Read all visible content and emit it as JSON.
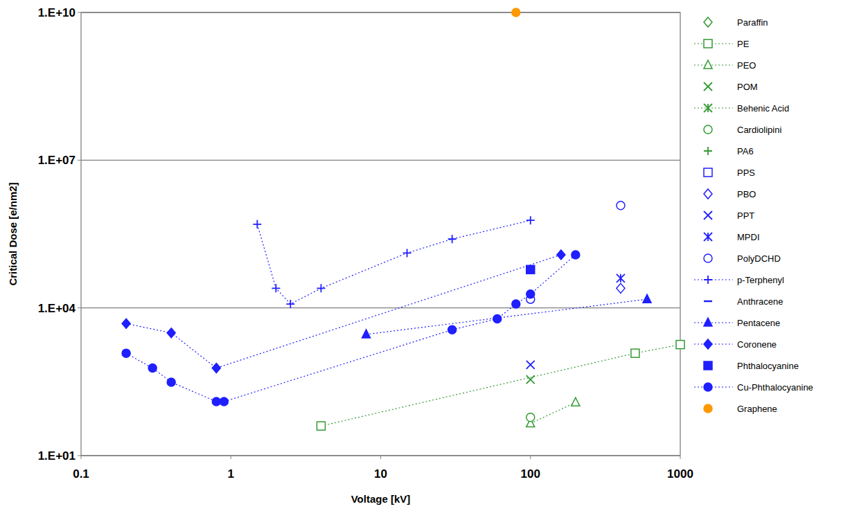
{
  "chart_data": {
    "type": "scatter",
    "x_label": "Voltage [kV]",
    "y_label": "Critical Dose [e/nm2]",
    "log": true,
    "grid": true,
    "legend": "right",
    "xlim": [
      0.1,
      1000
    ],
    "ylim": [
      10,
      10000000000
    ],
    "xticks": [
      0.1,
      1,
      10,
      100,
      1000
    ],
    "yticks": [
      {
        "value": 10,
        "label": "1.E+01"
      },
      {
        "value": 10000,
        "label": "1.E+04"
      },
      {
        "value": 10000000,
        "label": "1.E+07"
      },
      {
        "value": 10000000000,
        "label": "1.E+10"
      }
    ],
    "series": [
      {
        "name": "Paraffin",
        "color": "#339933",
        "marker": "diamond-open",
        "line_style": "none",
        "x": [],
        "values": []
      },
      {
        "name": "PE",
        "color": "#339933",
        "marker": "square-open",
        "line_style": "dotted",
        "x": [
          4,
          500,
          1000
        ],
        "values": [
          40,
          1200,
          1800
        ]
      },
      {
        "name": "PEO",
        "color": "#339933",
        "marker": "triangle-open",
        "line_style": "dotted",
        "x": [
          100,
          200
        ],
        "values": [
          45,
          120
        ]
      },
      {
        "name": "POM",
        "color": "#339933",
        "marker": "x",
        "line_style": "none",
        "x": [
          100
        ],
        "values": [
          350
        ]
      },
      {
        "name": "Behenic Acid",
        "color": "#339933",
        "marker": "asterisk",
        "line_style": "dotted",
        "x": [],
        "values": []
      },
      {
        "name": "Cardiolipini",
        "color": "#339933",
        "marker": "circle-open",
        "line_style": "none",
        "x": [
          100
        ],
        "values": [
          60
        ]
      },
      {
        "name": "PA6",
        "color": "#339933",
        "marker": "plus",
        "line_style": "none",
        "x": [],
        "values": []
      },
      {
        "name": "PPS",
        "color": "#1f1fff",
        "marker": "square-open",
        "line_style": "none",
        "x": [],
        "values": []
      },
      {
        "name": "PBO",
        "color": "#1f1fff",
        "marker": "diamond-open",
        "line_style": "none",
        "x": [
          400
        ],
        "values": [
          25000
        ]
      },
      {
        "name": "PPT",
        "color": "#1f1fff",
        "marker": "x",
        "line_style": "none",
        "x": [
          100
        ],
        "values": [
          700
        ]
      },
      {
        "name": "MPDI",
        "color": "#1f1fff",
        "marker": "asterisk",
        "line_style": "none",
        "x": [
          400
        ],
        "values": [
          40000
        ]
      },
      {
        "name": "PolyDCHD",
        "color": "#1f1fff",
        "marker": "circle-open",
        "line_style": "none",
        "x": [
          100,
          400
        ],
        "values": [
          15000,
          1200000
        ]
      },
      {
        "name": "p-Terphenyl",
        "color": "#1f1fff",
        "marker": "plus",
        "line_style": "dotted",
        "x": [
          1.5,
          2,
          2.5,
          4,
          15,
          30,
          100
        ],
        "values": [
          500000,
          25000,
          12000,
          25000,
          130000,
          250000,
          600000
        ]
      },
      {
        "name": "Anthracene",
        "color": "#1f1fff",
        "marker": "dash",
        "line_style": "none",
        "x": [],
        "values": []
      },
      {
        "name": "Pentacene",
        "color": "#1f1fff",
        "marker": "triangle",
        "line_style": "dotted",
        "x": [
          8,
          600
        ],
        "values": [
          2900,
          15000
        ]
      },
      {
        "name": "Coronene",
        "color": "#1f1fff",
        "marker": "diamond",
        "line_style": "dotted",
        "x": [
          0.2,
          0.4,
          0.8,
          160
        ],
        "values": [
          4800,
          3100,
          600,
          120000
        ]
      },
      {
        "name": "Phthalocyanine",
        "color": "#1f1fff",
        "marker": "square",
        "line_style": "none",
        "x": [
          100
        ],
        "values": [
          60000
        ]
      },
      {
        "name": "Cu-Phthalocyanine",
        "color": "#1f1fff",
        "marker": "circle",
        "line_style": "dotted",
        "x": [
          0.2,
          0.3,
          0.4,
          0.8,
          0.9,
          30,
          60,
          80,
          100,
          200
        ],
        "values": [
          1200,
          600,
          310,
          125,
          125,
          3600,
          6000,
          12000,
          19000,
          120000
        ]
      },
      {
        "name": "Graphene",
        "color": "#ff9900",
        "marker": "circle",
        "line_style": "none",
        "x": [
          80
        ],
        "values": [
          10000000000
        ]
      }
    ]
  }
}
